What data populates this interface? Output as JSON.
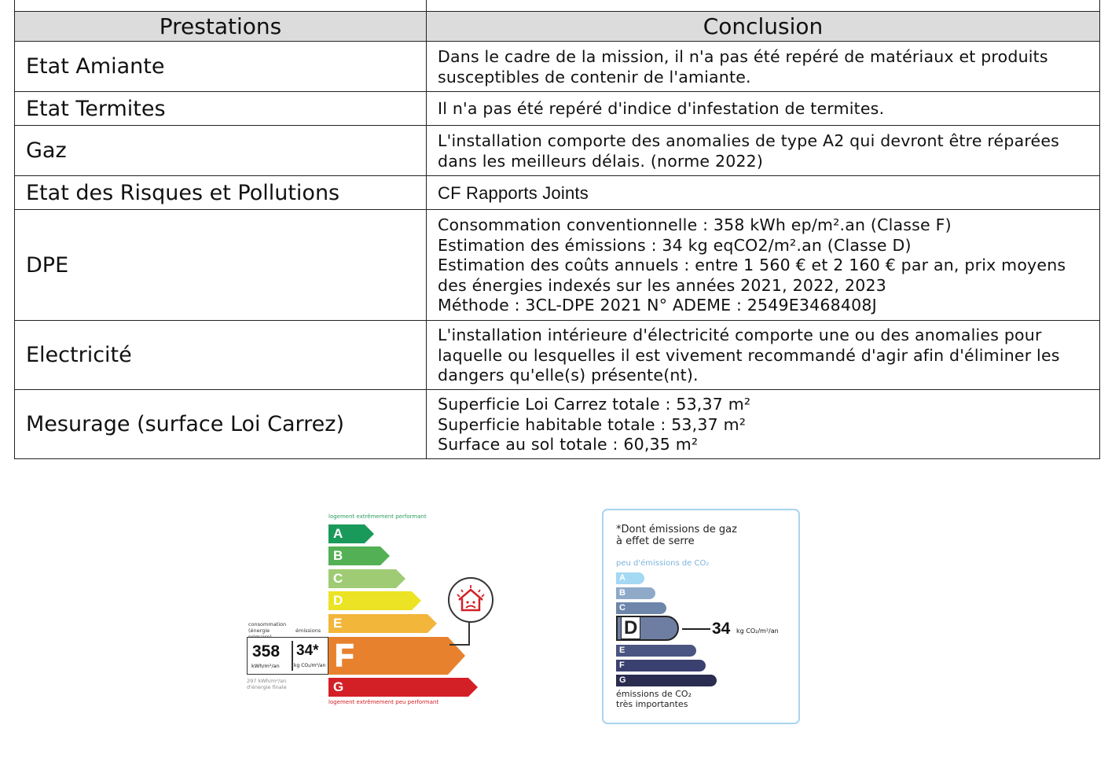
{
  "table": {
    "headers": {
      "left": "Prestations",
      "right": "Conclusion"
    },
    "rows": [
      {
        "label": "Etat Amiante",
        "lines": [
          "Dans le cadre de la mission, il n'a pas été repéré de matériaux et produits",
          "susceptibles de contenir de l'amiante."
        ]
      },
      {
        "label": "Etat Termites",
        "lines": [
          "Il n'a pas été repéré d'indice d'infestation de termites."
        ]
      },
      {
        "label": "Gaz",
        "lines": [
          "L'installation comporte des anomalies de type A2 qui devront être réparées",
          "dans les meilleurs délais. (norme 2022)"
        ]
      },
      {
        "label": "Etat des Risques et Pollutions",
        "lines": [
          "CF Rapports Joints"
        ]
      },
      {
        "label": "DPE",
        "lines": [
          "Consommation conventionnelle : 358 kWh ep/m².an (Classe F)",
          "Estimation des émissions : 34 kg eqCO2/m².an (Classe D)",
          "Estimation des coûts annuels : entre 1 560 € et 2 160 € par an, prix moyens",
          "des énergies indexés sur les années 2021, 2022, 2023",
          "Méthode : 3CL-DPE 2021 N° ADEME : 2549E3468408J"
        ]
      },
      {
        "label": "Electricité",
        "lines": [
          "L'installation intérieure d'électricité comporte une ou des anomalies pour",
          "laquelle ou lesquelles il est vivement recommandé d'agir afin d'éliminer les",
          "dangers qu'elle(s) présente(nt)."
        ]
      },
      {
        "label": "Mesurage (surface Loi Carrez)",
        "lines": [
          "Superficie Loi Carrez totale : 53,37 m²",
          "Superficie habitable totale : 53,37 m²",
          "Surface au sol totale : 60,35 m²"
        ]
      }
    ]
  },
  "energy_label": {
    "top_caption": "logement extrêmement performant",
    "bottom_caption": "logement extrêmement peu performant",
    "classes": [
      "A",
      "B",
      "C",
      "D",
      "E",
      "F",
      "G"
    ],
    "class_colors": [
      "#1a9a5a",
      "#53b054",
      "#9fcb74",
      "#ece324",
      "#f2b63b",
      "#e8812d",
      "#d32027"
    ],
    "current_class": "F",
    "consumption_caption": "consommation (énergie primaire)",
    "emissions_caption": "émissions",
    "consumption_value": "358",
    "consumption_unit": "kWh/m²/an",
    "emissions_value": "34*",
    "emissions_unit": "kg CO₂/m²/an",
    "final_energy": "297 kWh/m²/an",
    "final_energy_caption": "d'énergie finale"
  },
  "ges_label": {
    "note_line1": "*Dont émissions de gaz",
    "note_line2": "à effet de serre",
    "low_caption": "peu d'émissions de CO₂",
    "high_caption_line1": "émissions de CO₂",
    "high_caption_line2": "très importantes",
    "classes": [
      "A",
      "B",
      "C",
      "D",
      "E",
      "F",
      "G"
    ],
    "class_colors": [
      "#a4d8f3",
      "#8fa9c9",
      "#6e86aa",
      "#6e7ea3",
      "#4a5581",
      "#3a4070",
      "#2a2c50"
    ],
    "current_class": "D",
    "value": "34",
    "unit": "kg CO₂/m²/an"
  }
}
